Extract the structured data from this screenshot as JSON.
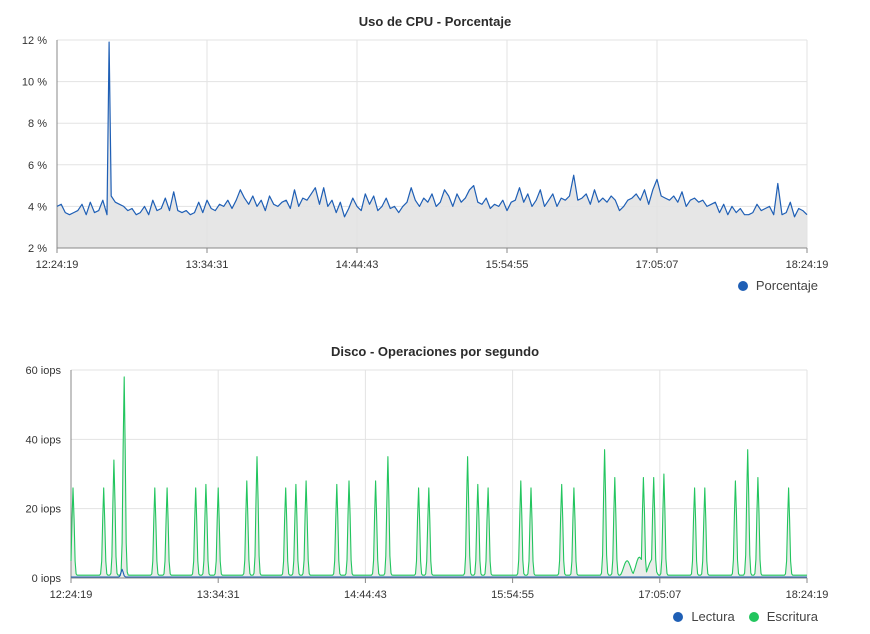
{
  "colors": {
    "cpu_line": "#1f5fb5",
    "cpu_fill": "#e6e6e6",
    "read_line": "#1f5fb5",
    "write_line": "#22c55e",
    "write_fill": "#e9ece9",
    "grid": "#e3e3e3",
    "axis": "#888888"
  },
  "chart_data": [
    {
      "type": "area",
      "title": "Uso de CPU - Porcentaje",
      "xlabel": "",
      "ylabel": "",
      "x_ticks": [
        "12:24:19",
        "13:34:31",
        "14:44:43",
        "15:54:55",
        "17:05:07",
        "18:24:19"
      ],
      "y_ticks": [
        "2 %",
        "4 %",
        "6 %",
        "8 %",
        "10 %",
        "12 %"
      ],
      "ylim": [
        2,
        12
      ],
      "x_unit": "minutes",
      "x_range_minutes": [
        0,
        360
      ],
      "grid": true,
      "legend_position": "bottom-right",
      "series": [
        {
          "name": "Porcentaje",
          "color_key": "cpu_line",
          "points": [
            [
              0,
              4.0
            ],
            [
              2,
              4.1
            ],
            [
              4,
              3.7
            ],
            [
              6,
              3.6
            ],
            [
              8,
              3.7
            ],
            [
              10,
              3.8
            ],
            [
              12,
              4.1
            ],
            [
              14,
              3.6
            ],
            [
              16,
              4.2
            ],
            [
              18,
              3.7
            ],
            [
              20,
              3.8
            ],
            [
              22,
              4.3
            ],
            [
              24,
              3.6
            ],
            [
              25,
              11.9
            ],
            [
              26,
              4.5
            ],
            [
              28,
              4.2
            ],
            [
              30,
              4.1
            ],
            [
              32,
              4.0
            ],
            [
              34,
              3.8
            ],
            [
              36,
              3.9
            ],
            [
              38,
              3.6
            ],
            [
              40,
              3.7
            ],
            [
              42,
              4.0
            ],
            [
              44,
              3.6
            ],
            [
              46,
              4.3
            ],
            [
              48,
              3.8
            ],
            [
              50,
              3.9
            ],
            [
              52,
              4.4
            ],
            [
              54,
              3.8
            ],
            [
              56,
              4.7
            ],
            [
              58,
              3.8
            ],
            [
              60,
              3.7
            ],
            [
              62,
              3.8
            ],
            [
              64,
              3.6
            ],
            [
              66,
              3.7
            ],
            [
              68,
              4.2
            ],
            [
              70,
              3.7
            ],
            [
              72,
              4.3
            ],
            [
              74,
              3.9
            ],
            [
              76,
              3.8
            ],
            [
              78,
              4.1
            ],
            [
              80,
              4.0
            ],
            [
              82,
              4.3
            ],
            [
              84,
              3.9
            ],
            [
              86,
              4.3
            ],
            [
              88,
              4.8
            ],
            [
              90,
              4.4
            ],
            [
              92,
              4.1
            ],
            [
              94,
              4.5
            ],
            [
              96,
              4.0
            ],
            [
              98,
              4.3
            ],
            [
              100,
              3.8
            ],
            [
              102,
              4.5
            ],
            [
              104,
              4.1
            ],
            [
              106,
              4.0
            ],
            [
              108,
              4.2
            ],
            [
              110,
              4.3
            ],
            [
              112,
              3.9
            ],
            [
              114,
              4.8
            ],
            [
              116,
              4.0
            ],
            [
              118,
              4.4
            ],
            [
              120,
              4.3
            ],
            [
              122,
              4.6
            ],
            [
              124,
              4.9
            ],
            [
              126,
              4.1
            ],
            [
              128,
              4.9
            ],
            [
              130,
              4.0
            ],
            [
              132,
              4.3
            ],
            [
              134,
              3.7
            ],
            [
              136,
              4.2
            ],
            [
              138,
              3.5
            ],
            [
              140,
              3.9
            ],
            [
              142,
              4.4
            ],
            [
              144,
              4.0
            ],
            [
              146,
              3.8
            ],
            [
              148,
              4.6
            ],
            [
              150,
              4.1
            ],
            [
              152,
              4.5
            ],
            [
              154,
              3.8
            ],
            [
              156,
              4.0
            ],
            [
              158,
              4.4
            ],
            [
              160,
              3.9
            ],
            [
              162,
              4.0
            ],
            [
              164,
              3.7
            ],
            [
              166,
              4.0
            ],
            [
              168,
              4.2
            ],
            [
              170,
              4.9
            ],
            [
              172,
              4.3
            ],
            [
              174,
              4.0
            ],
            [
              176,
              4.4
            ],
            [
              178,
              4.2
            ],
            [
              180,
              4.6
            ],
            [
              182,
              4.0
            ],
            [
              184,
              4.2
            ],
            [
              186,
              4.8
            ],
            [
              188,
              4.5
            ],
            [
              190,
              4.0
            ],
            [
              192,
              4.6
            ],
            [
              194,
              4.2
            ],
            [
              196,
              4.4
            ],
            [
              198,
              4.8
            ],
            [
              200,
              5.0
            ],
            [
              202,
              4.2
            ],
            [
              204,
              4.1
            ],
            [
              206,
              4.4
            ],
            [
              208,
              3.9
            ],
            [
              210,
              4.1
            ],
            [
              212,
              4.0
            ],
            [
              214,
              4.3
            ],
            [
              216,
              3.8
            ],
            [
              218,
              4.2
            ],
            [
              220,
              4.3
            ],
            [
              222,
              4.9
            ],
            [
              224,
              4.2
            ],
            [
              226,
              4.6
            ],
            [
              228,
              4.0
            ],
            [
              230,
              4.3
            ],
            [
              232,
              4.8
            ],
            [
              234,
              4.0
            ],
            [
              236,
              4.3
            ],
            [
              238,
              4.6
            ],
            [
              240,
              4.0
            ],
            [
              242,
              4.4
            ],
            [
              244,
              4.3
            ],
            [
              246,
              4.5
            ],
            [
              248,
              5.5
            ],
            [
              250,
              4.3
            ],
            [
              252,
              4.4
            ],
            [
              254,
              4.6
            ],
            [
              256,
              4.1
            ],
            [
              258,
              4.8
            ],
            [
              260,
              4.2
            ],
            [
              262,
              4.4
            ],
            [
              264,
              4.2
            ],
            [
              266,
              4.5
            ],
            [
              268,
              4.3
            ],
            [
              270,
              3.8
            ],
            [
              272,
              4.0
            ],
            [
              274,
              4.3
            ],
            [
              276,
              4.4
            ],
            [
              278,
              4.6
            ],
            [
              280,
              4.3
            ],
            [
              282,
              4.8
            ],
            [
              284,
              4.1
            ],
            [
              286,
              4.8
            ],
            [
              288,
              5.3
            ],
            [
              290,
              4.5
            ],
            [
              292,
              4.4
            ],
            [
              294,
              4.3
            ],
            [
              296,
              4.5
            ],
            [
              298,
              4.2
            ],
            [
              300,
              4.7
            ],
            [
              302,
              4.0
            ],
            [
              304,
              4.3
            ],
            [
              306,
              4.4
            ],
            [
              308,
              4.2
            ],
            [
              310,
              4.3
            ],
            [
              312,
              4.0
            ],
            [
              314,
              4.1
            ],
            [
              316,
              4.2
            ],
            [
              318,
              3.7
            ],
            [
              320,
              4.1
            ],
            [
              322,
              3.6
            ],
            [
              324,
              4.0
            ],
            [
              326,
              3.7
            ],
            [
              328,
              3.9
            ],
            [
              330,
              3.6
            ],
            [
              332,
              3.6
            ],
            [
              334,
              3.7
            ],
            [
              336,
              4.1
            ],
            [
              338,
              3.8
            ],
            [
              340,
              3.9
            ],
            [
              342,
              4.0
            ],
            [
              344,
              3.6
            ],
            [
              346,
              5.1
            ],
            [
              348,
              3.6
            ],
            [
              350,
              3.7
            ],
            [
              352,
              4.2
            ],
            [
              354,
              3.5
            ],
            [
              356,
              3.9
            ],
            [
              358,
              3.8
            ],
            [
              360,
              3.6
            ]
          ]
        }
      ]
    },
    {
      "type": "area",
      "title": "Disco - Operaciones por segundo",
      "xlabel": "",
      "ylabel": "",
      "x_ticks": [
        "12:24:19",
        "13:34:31",
        "14:44:43",
        "15:54:55",
        "17:05:07",
        "18:24:19"
      ],
      "y_ticks": [
        "0 iops",
        "20 iops",
        "40 iops",
        "60 iops"
      ],
      "ylim": [
        0,
        60
      ],
      "x_unit": "minutes",
      "x_range_minutes": [
        0,
        360
      ],
      "grid": true,
      "legend_position": "bottom-right",
      "series": [
        {
          "name": "Lectura",
          "color_key": "read_line",
          "baseline": 0.3,
          "spikes": [
            [
              25,
              2.5
            ]
          ]
        },
        {
          "name": "Escritura",
          "color_key": "write_line",
          "baseline": 0.8,
          "spikes": [
            [
              1,
              26
            ],
            [
              16,
              26
            ],
            [
              21,
              34
            ],
            [
              26,
              58
            ],
            [
              41,
              26
            ],
            [
              47,
              26
            ],
            [
              61,
              26
            ],
            [
              66,
              27
            ],
            [
              72,
              26
            ],
            [
              86,
              28
            ],
            [
              91,
              35
            ],
            [
              105,
              26
            ],
            [
              110,
              27
            ],
            [
              115,
              28
            ],
            [
              130,
              27
            ],
            [
              136,
              28
            ],
            [
              149,
              28
            ],
            [
              155,
              35
            ],
            [
              170,
              26
            ],
            [
              175,
              26
            ],
            [
              194,
              35
            ],
            [
              199,
              27
            ],
            [
              204,
              26
            ],
            [
              220,
              28
            ],
            [
              225,
              26
            ],
            [
              240,
              27
            ],
            [
              246,
              26
            ],
            [
              261,
              37
            ],
            [
              266,
              29
            ],
            [
              280,
              29
            ],
            [
              285,
              29
            ],
            [
              290,
              30
            ],
            [
              305,
              26
            ],
            [
              310,
              26
            ],
            [
              325,
              28
            ],
            [
              331,
              37
            ],
            [
              336,
              29
            ],
            [
              351,
              26
            ]
          ],
          "bumps": [
            [
              272,
              5
            ],
            [
              278,
              6
            ],
            [
              284,
              5
            ]
          ]
        }
      ]
    }
  ]
}
